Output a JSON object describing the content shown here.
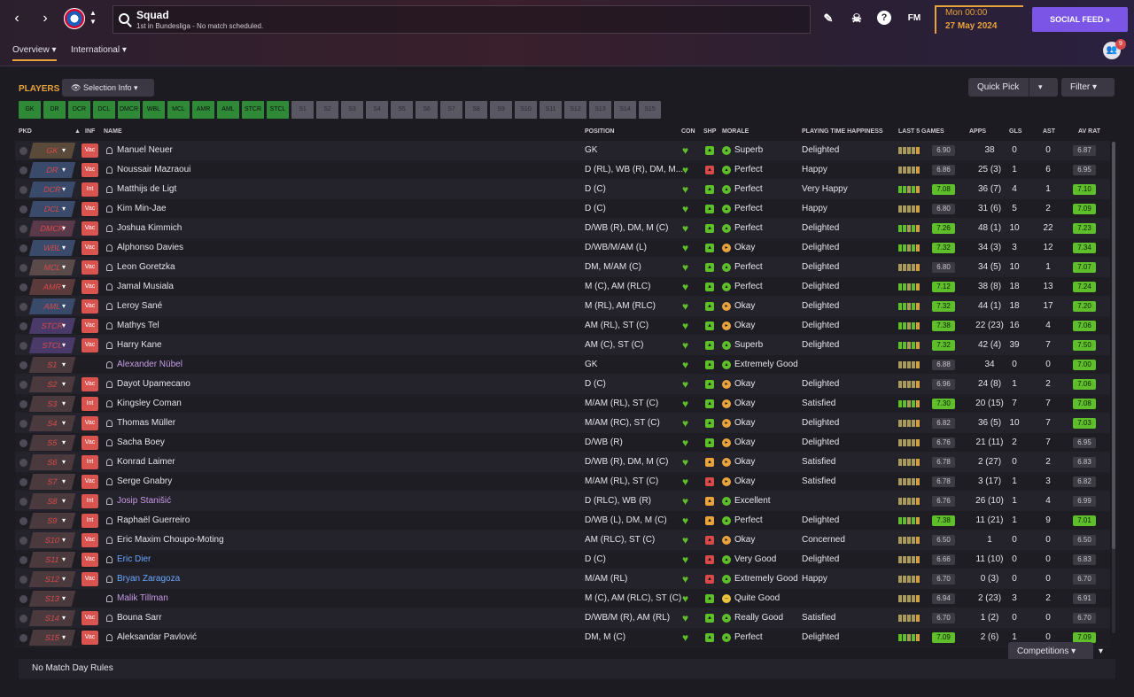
{
  "header": {
    "title": "Squad",
    "subtitle": "1st in Bundesliga - No match scheduled.",
    "date_time": "Mon 00:00",
    "date_day": "27 May 2024",
    "social_feed": "SOCIAL FEED",
    "fm_label": "FM",
    "notifications": "9"
  },
  "tabs": {
    "overview": "Overview",
    "international": "International"
  },
  "panel": {
    "players_label": "PLAYERS",
    "selection_info": "Selection Info",
    "quick_pick": "Quick Pick",
    "filter": "Filter"
  },
  "positions": [
    "GK",
    "DR",
    "DCR",
    "DCL",
    "DMCR",
    "WBL",
    "MCL",
    "AMR",
    "AML",
    "STCR",
    "STCL",
    "S1",
    "S2",
    "S3",
    "S4",
    "S5",
    "S6",
    "S7",
    "S8",
    "S9",
    "S10",
    "S11",
    "S12",
    "S13",
    "S14",
    "S15"
  ],
  "columns": {
    "pkd": "PKD",
    "inf": "INF",
    "name": "NAME",
    "position": "POSITION",
    "con": "CON",
    "shp": "SHP",
    "morale": "MORALE",
    "pth": "PLAYING TIME HAPPINESS",
    "last5": "LAST 5 GAMES",
    "apps": "APPS",
    "gls": "GLS",
    "ast": "AST",
    "avrat": "AV RAT"
  },
  "colors": {
    "accent": "#e8a33d",
    "social": "#7a55e6",
    "good": "#5ebf2a",
    "bad": "#d84a4a"
  },
  "players": [
    {
      "pkd": "GK",
      "inf": "Vac",
      "name": "Manuel Neuer",
      "position": "GK",
      "morale": "Superb",
      "pth": "Delighted",
      "form": "6.90",
      "apps": "38",
      "gls": "0",
      "ast": "0",
      "avrat": "6.87"
    },
    {
      "pkd": "DR",
      "inf": "Vac",
      "name": "Noussair Mazraoui",
      "position": "D (RL), WB (R), DM, M...",
      "morale": "Perfect",
      "pth": "Happy",
      "form": "6.86",
      "apps": "25 (3)",
      "gls": "1",
      "ast": "6",
      "avrat": "6.95"
    },
    {
      "pkd": "DCR",
      "inf": "Int",
      "name": "Matthijs de Ligt",
      "position": "D (C)",
      "morale": "Perfect",
      "pth": "Very Happy",
      "form": "7.08",
      "apps": "36 (7)",
      "gls": "4",
      "ast": "1",
      "avrat": "7.10"
    },
    {
      "pkd": "DCL",
      "inf": "Vac",
      "name": "Kim Min-Jae",
      "position": "D (C)",
      "morale": "Perfect",
      "pth": "Happy",
      "form": "6.80",
      "apps": "31 (6)",
      "gls": "5",
      "ast": "2",
      "avrat": "7.09"
    },
    {
      "pkd": "DMCR",
      "inf": "Vac",
      "name": "Joshua Kimmich",
      "position": "D/WB (R), DM, M (C)",
      "morale": "Perfect",
      "pth": "Delighted",
      "form": "7.26",
      "apps": "48 (1)",
      "gls": "10",
      "ast": "22",
      "avrat": "7.23"
    },
    {
      "pkd": "WBL",
      "inf": "Vac",
      "name": "Alphonso Davies",
      "position": "D/WB/M/AM (L)",
      "morale": "Okay",
      "pth": "Delighted",
      "form": "7.32",
      "apps": "34 (3)",
      "gls": "3",
      "ast": "12",
      "avrat": "7.34"
    },
    {
      "pkd": "MCL",
      "inf": "Vac",
      "name": "Leon Goretzka",
      "position": "DM, M/AM (C)",
      "morale": "Perfect",
      "pth": "Delighted",
      "form": "6.80",
      "apps": "34 (5)",
      "gls": "10",
      "ast": "1",
      "avrat": "7.07"
    },
    {
      "pkd": "AMR",
      "inf": "Vac",
      "name": "Jamal Musiala",
      "position": "M (C), AM (RLC)",
      "morale": "Perfect",
      "pth": "Delighted",
      "form": "7.12",
      "apps": "38 (8)",
      "gls": "18",
      "ast": "13",
      "avrat": "7.24"
    },
    {
      "pkd": "AML",
      "inf": "Vac",
      "name": "Leroy Sané",
      "position": "M (RL), AM (RLC)",
      "morale": "Okay",
      "pth": "Delighted",
      "form": "7.32",
      "apps": "44 (1)",
      "gls": "18",
      "ast": "17",
      "avrat": "7.20"
    },
    {
      "pkd": "STCR",
      "inf": "Vac",
      "name": "Mathys Tel",
      "position": "AM (RL), ST (C)",
      "morale": "Okay",
      "pth": "Delighted",
      "form": "7.38",
      "apps": "22 (23)",
      "gls": "16",
      "ast": "4",
      "avrat": "7.06"
    },
    {
      "pkd": "STCL",
      "inf": "Vac",
      "name": "Harry Kane",
      "position": "AM (C), ST (C)",
      "morale": "Superb",
      "pth": "Delighted",
      "form": "7.32",
      "apps": "42 (4)",
      "gls": "39",
      "ast": "7",
      "avrat": "7.50"
    },
    {
      "pkd": "S1",
      "inf": "",
      "name": "Alexander Nübel",
      "position": "GK",
      "morale": "Extremely Good",
      "pth": "",
      "form": "6.88",
      "apps": "34",
      "gls": "0",
      "ast": "0",
      "avrat": "7.00"
    },
    {
      "pkd": "S2",
      "inf": "Vac",
      "name": "Dayot Upamecano",
      "position": "D (C)",
      "morale": "Okay",
      "pth": "Delighted",
      "form": "6.96",
      "apps": "24 (8)",
      "gls": "1",
      "ast": "2",
      "avrat": "7.06"
    },
    {
      "pkd": "S3",
      "inf": "Int",
      "name": "Kingsley Coman",
      "position": "M/AM (RL), ST (C)",
      "morale": "Okay",
      "pth": "Satisfied",
      "form": "7.30",
      "apps": "20 (15)",
      "gls": "7",
      "ast": "7",
      "avrat": "7.08"
    },
    {
      "pkd": "S4",
      "inf": "Vac",
      "name": "Thomas Müller",
      "position": "M/AM (RC), ST (C)",
      "morale": "Okay",
      "pth": "Delighted",
      "form": "6.82",
      "apps": "36 (5)",
      "gls": "10",
      "ast": "7",
      "avrat": "7.03"
    },
    {
      "pkd": "S5",
      "inf": "Vac",
      "name": "Sacha Boey",
      "position": "D/WB (R)",
      "morale": "Okay",
      "pth": "Delighted",
      "form": "6.76",
      "apps": "21 (11)",
      "gls": "2",
      "ast": "7",
      "avrat": "6.95"
    },
    {
      "pkd": "S6",
      "inf": "Int",
      "name": "Konrad Laimer",
      "position": "D/WB (R), DM, M (C)",
      "morale": "Okay",
      "pth": "Satisfied",
      "form": "6.78",
      "apps": "2 (27)",
      "gls": "0",
      "ast": "2",
      "avrat": "6.83"
    },
    {
      "pkd": "S7",
      "inf": "Vac",
      "name": "Serge Gnabry",
      "position": "M/AM (RL), ST (C)",
      "morale": "Okay",
      "pth": "Satisfied",
      "form": "6.78",
      "apps": "3 (17)",
      "gls": "1",
      "ast": "3",
      "avrat": "6.82"
    },
    {
      "pkd": "S8",
      "inf": "Int",
      "name": "Josip Stanišić",
      "position": "D (RLC), WB (R)",
      "morale": "Excellent",
      "pth": "",
      "form": "6.76",
      "apps": "26 (10)",
      "gls": "1",
      "ast": "4",
      "avrat": "6.99"
    },
    {
      "pkd": "S9",
      "inf": "Int",
      "name": "Raphaël Guerreiro",
      "position": "D/WB (L), DM, M (C)",
      "morale": "Perfect",
      "pth": "Delighted",
      "form": "7.38",
      "apps": "11 (21)",
      "gls": "1",
      "ast": "9",
      "avrat": "7.01"
    },
    {
      "pkd": "S10",
      "inf": "Vac",
      "name": "Eric Maxim Choupo-Moting",
      "position": "AM (RLC), ST (C)",
      "morale": "Okay",
      "pth": "Concerned",
      "form": "6.50",
      "apps": "1",
      "gls": "0",
      "ast": "0",
      "avrat": "6.50"
    },
    {
      "pkd": "S11",
      "inf": "Vac",
      "name": "Eric Dier",
      "position": "D (C)",
      "morale": "Very Good",
      "pth": "Delighted",
      "form": "6.66",
      "apps": "11 (10)",
      "gls": "0",
      "ast": "0",
      "avrat": "6.83"
    },
    {
      "pkd": "S12",
      "inf": "Vac",
      "name": "Bryan Zaragoza",
      "position": "M/AM (RL)",
      "morale": "Extremely Good",
      "pth": "Happy",
      "form": "6.70",
      "apps": "0 (3)",
      "gls": "0",
      "ast": "0",
      "avrat": "6.70"
    },
    {
      "pkd": "S13",
      "inf": "",
      "name": "Malik Tillman",
      "position": "M (C), AM (RLC), ST (C)",
      "morale": "Quite Good",
      "pth": "",
      "form": "6.94",
      "apps": "2 (23)",
      "gls": "3",
      "ast": "2",
      "avrat": "6.91"
    },
    {
      "pkd": "S14",
      "inf": "Vac",
      "name": "Bouna Sarr",
      "position": "D/WB/M (R), AM (RL)",
      "morale": "Really Good",
      "pth": "Satisfied",
      "form": "6.70",
      "apps": "1 (2)",
      "gls": "0",
      "ast": "0",
      "avrat": "6.70"
    },
    {
      "pkd": "S15",
      "inf": "Vac",
      "name": "Aleksandar Pavlović",
      "position": "DM, M (C)",
      "morale": "Perfect",
      "pth": "Delighted",
      "form": "7.09",
      "apps": "2 (6)",
      "gls": "1",
      "ast": "0",
      "avrat": "7.09"
    }
  ],
  "footer": {
    "rules": "No Match Day Rules",
    "competitions": "Competitions"
  }
}
